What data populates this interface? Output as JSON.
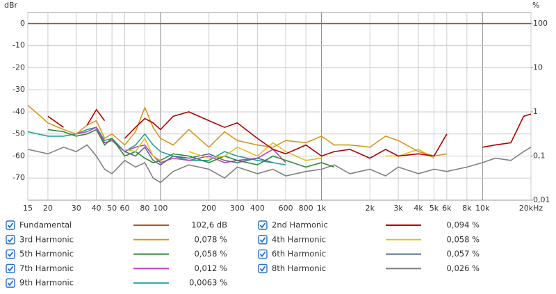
{
  "chart_data": {
    "type": "line",
    "y_label": "dBr",
    "y2_label": "%",
    "x_scale": "log",
    "y2_scale": "log",
    "grid": true,
    "xlim": [
      15,
      20000
    ],
    "ylim": [
      -80,
      5
    ],
    "y2lim": [
      0.01,
      177.8
    ],
    "xticks": [
      15,
      20,
      30,
      40,
      50,
      60,
      80,
      100,
      200,
      300,
      400,
      600,
      800,
      {
        "value": 1000,
        "label": "1k"
      },
      {
        "value": 2000,
        "label": "2k"
      },
      {
        "value": 3000,
        "label": "3k"
      },
      {
        "value": 4000,
        "label": "4k"
      },
      {
        "value": 5000,
        "label": "5k"
      },
      {
        "value": 6000,
        "label": "6k"
      },
      {
        "value": 8000,
        "label": "8k"
      },
      {
        "value": 10000,
        "label": "10k"
      },
      {
        "value": 20000,
        "label": "20kHz"
      }
    ],
    "yticks": [
      0,
      -10,
      -20,
      -30,
      -40,
      -50,
      -60,
      -70
    ],
    "y2ticks": [
      100,
      10,
      1,
      {
        "value": 0.1,
        "label": "0,1"
      },
      {
        "value": 0.01,
        "label": "0,01"
      }
    ],
    "x": [
      15,
      20,
      25,
      30,
      35,
      40,
      45,
      50,
      60,
      70,
      80,
      90,
      100,
      120,
      150,
      200,
      250,
      300,
      400,
      500,
      600,
      800,
      1000,
      1200,
      1500,
      2000,
      2500,
      3000,
      4000,
      5000,
      6000,
      8000,
      10000,
      12000,
      15000,
      18000,
      20000
    ],
    "series": [
      {
        "name": "Fundamental",
        "color": "#b5561d",
        "level_label": "102,6 dB",
        "values": [
          0,
          0,
          0,
          0,
          0,
          0,
          0,
          0,
          0,
          0,
          0,
          0,
          0,
          0,
          0,
          0,
          0,
          0,
          0,
          0,
          0,
          0,
          0,
          0,
          0,
          0,
          0,
          0,
          0,
          0,
          0,
          0,
          0,
          0,
          0,
          0,
          0
        ]
      },
      {
        "name": "2nd Harmonic",
        "color": "#b00000",
        "level_label": "0,094 %",
        "values": [
          null,
          -42,
          -47,
          null,
          -46,
          -39,
          -44,
          null,
          -52,
          -47,
          -43,
          -45,
          -48,
          -42,
          -40,
          -44,
          -47,
          -45,
          -52,
          -57,
          -59,
          -55,
          -60,
          -58,
          -57,
          -61,
          -57,
          -60,
          -59,
          -60,
          -50,
          null,
          -56,
          -55,
          -54,
          -42,
          -41
        ]
      },
      {
        "name": "3rd Harmonic",
        "color": "#d8961c",
        "level_label": "0,078 %",
        "values": [
          -37,
          -45,
          -48,
          -50,
          -46,
          -44,
          -52,
          -50,
          -55,
          -49,
          -38,
          -47,
          -52,
          -55,
          -48,
          -56,
          -49,
          -53,
          -55,
          -56,
          -53,
          -54,
          -51,
          -55,
          -55,
          -56,
          -51,
          -53,
          -58,
          -60,
          -59,
          null,
          null,
          null,
          null,
          null,
          null
        ]
      },
      {
        "name": "4th Harmonic",
        "color": "#e0c020",
        "level_label": "0,058 %",
        "values": [
          null,
          null,
          null,
          null,
          null,
          null,
          null,
          null,
          -57,
          -58,
          -52,
          -60,
          -62,
          null,
          -58,
          -61,
          -60,
          -56,
          -60,
          -54,
          -58,
          -62,
          -61,
          null,
          -62,
          null,
          -60,
          -60,
          -57,
          -61,
          null,
          null,
          null,
          null,
          null,
          null,
          null
        ]
      },
      {
        "name": "5th Harmonic",
        "color": "#2e8b2e",
        "level_label": "0,058 %",
        "values": [
          null,
          -48,
          -49,
          -51,
          -50,
          -48,
          -55,
          -52,
          -60,
          -58,
          -61,
          -63,
          -62,
          -59,
          -60,
          -63,
          -60,
          -62,
          -64,
          -60,
          -62,
          -65,
          -63,
          -65,
          null,
          null,
          null,
          null,
          null,
          null,
          null,
          null,
          null,
          null,
          null,
          null,
          null
        ]
      },
      {
        "name": "6th Harmonic",
        "color": "#4f6f8f",
        "level_label": "0,057 %",
        "values": [
          null,
          null,
          null,
          null,
          null,
          null,
          null,
          null,
          -58,
          -60,
          -56,
          -62,
          -64,
          -60,
          -61,
          -59,
          -62,
          -63,
          -61,
          -63,
          null,
          null,
          null,
          null,
          null,
          null,
          null,
          null,
          null,
          null,
          null,
          null,
          null,
          null,
          null,
          null,
          null
        ]
      },
      {
        "name": "7th Harmonic",
        "color": "#c040c0",
        "level_label": "0,012 %",
        "values": [
          null,
          null,
          null,
          -50,
          -49,
          -47,
          -54,
          -53,
          -58,
          -56,
          -55,
          -60,
          -63,
          -61,
          -62,
          -60,
          -63,
          -62,
          -61,
          -57,
          -63,
          null,
          null,
          null,
          null,
          null,
          null,
          null,
          null,
          null,
          null,
          null,
          null,
          null,
          null,
          null,
          null
        ]
      },
      {
        "name": "8th Harmonic",
        "color": "#808080",
        "level_label": "0,026 %",
        "values": [
          -57,
          -59,
          -56,
          -58,
          -55,
          -60,
          -66,
          -68,
          -62,
          -65,
          -63,
          -70,
          -72,
          -67,
          -64,
          -66,
          -70,
          -65,
          -68,
          -66,
          -69,
          -67,
          -66,
          -64,
          -68,
          -66,
          -69,
          -65,
          -68,
          -66,
          -67,
          -65,
          -63,
          -61,
          -62,
          -58,
          -56
        ]
      },
      {
        "name": "9th Harmonic",
        "color": "#20a0a0",
        "level_label": "0,0063 %",
        "values": [
          -49,
          -51,
          -51,
          -50,
          -48,
          -47,
          -53,
          -52,
          -58,
          -55,
          -50,
          -55,
          -58,
          -60,
          -62,
          -62,
          -58,
          -60,
          -62,
          -63,
          -64,
          null,
          null,
          null,
          null,
          null,
          null,
          null,
          null,
          null,
          null,
          null,
          null,
          null,
          null,
          null,
          null
        ]
      }
    ]
  }
}
